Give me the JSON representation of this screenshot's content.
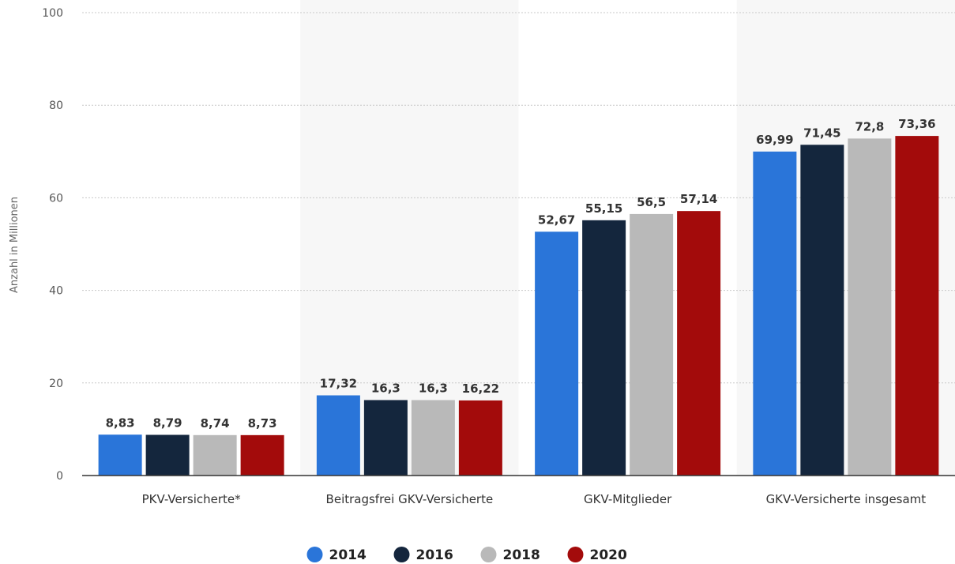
{
  "chart_data": {
    "type": "bar",
    "categories": [
      "PKV-Versicherte*",
      "Beitragsfrei GKV-Versicherte",
      "GKV-Mitglieder",
      "GKV-Versicherte insgesamt"
    ],
    "series": [
      {
        "name": "2014",
        "color": "#2a75d9",
        "values": [
          8.83,
          17.32,
          52.67,
          69.99
        ],
        "labels": [
          "8,83",
          "17,32",
          "52,67",
          "69,99"
        ]
      },
      {
        "name": "2016",
        "color": "#14263d",
        "values": [
          8.79,
          16.3,
          55.15,
          71.45
        ],
        "labels": [
          "8,79",
          "16,3",
          "55,15",
          "71,45"
        ]
      },
      {
        "name": "2018",
        "color": "#b9b9b9",
        "values": [
          8.74,
          16.3,
          56.5,
          72.8
        ],
        "labels": [
          "8,74",
          "16,3",
          "56,5",
          "72,8"
        ]
      },
      {
        "name": "2020",
        "color": "#a30b0b",
        "values": [
          8.73,
          16.22,
          57.14,
          73.36
        ],
        "labels": [
          "8,73",
          "16,22",
          "57,14",
          "73,36"
        ]
      }
    ],
    "ylabel": "Anzahl in Millionen",
    "ylim": [
      0,
      100
    ],
    "yticks": [
      0,
      20,
      40,
      60,
      80,
      100
    ],
    "grid": true,
    "legend_position": "bottom-center"
  }
}
